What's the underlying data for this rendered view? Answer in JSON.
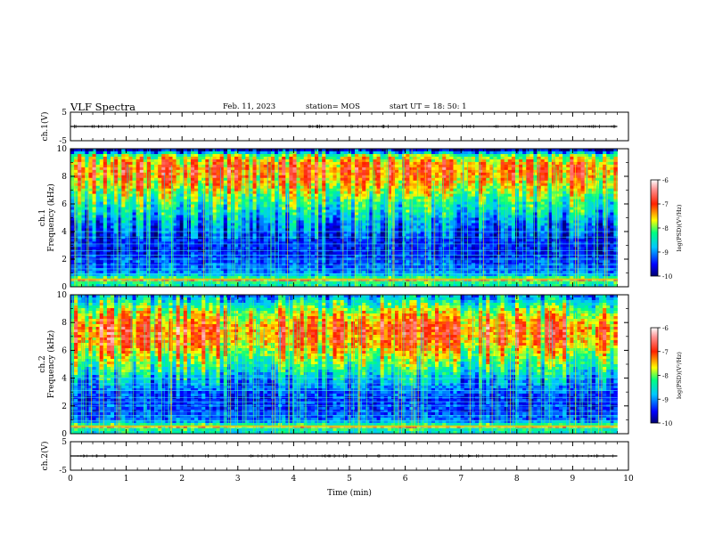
{
  "header": {
    "title": "VLF Spectra",
    "date": "Feb. 11, 2023",
    "station": "station= MOS",
    "start": "start  UT =   18: 50: 1"
  },
  "chart_data": [
    {
      "type": "line",
      "panel": "ch1-waveform",
      "ylabel": "ch.1(V)",
      "ylim": [
        -5,
        5
      ],
      "yticks": [
        "5",
        "-5"
      ],
      "x": [
        0,
        9.8
      ],
      "values": [
        0,
        0
      ]
    },
    {
      "type": "heatmap",
      "panel": "ch1-spectrogram",
      "ylabel": "ch.1\nFrequency  (kHz)",
      "ylim": [
        0,
        10
      ],
      "yticks": [
        "0",
        "2",
        "4",
        "6",
        "8",
        "10"
      ],
      "xlim": [
        0,
        10
      ],
      "data_extent_x": [
        0,
        9.8
      ],
      "colorbar": {
        "label": "log(PSD)(V²/Hz)",
        "range": [
          -10,
          -6
        ],
        "ticks": [
          "-6",
          "-7",
          "-8",
          "-9",
          "-10"
        ]
      },
      "band_intensity_profile": {
        "freq_khz": [
          0.25,
          0.5,
          0.75,
          1.0,
          1.5,
          2.0,
          2.5,
          3.0,
          3.5,
          4.0,
          4.5,
          5.0,
          5.5,
          6.0,
          6.5,
          7.0,
          7.5,
          8.0,
          8.5,
          9.0,
          9.5,
          9.9
        ],
        "log_psd": [
          -8.4,
          -7.3,
          -8.6,
          -9.0,
          -9.2,
          -9.3,
          -9.5,
          -9.4,
          -9.4,
          -9.2,
          -9.0,
          -8.8,
          -8.5,
          -8.3,
          -8.0,
          -7.7,
          -7.4,
          -7.2,
          -7.1,
          -7.3,
          -7.9,
          -9.6
        ]
      }
    },
    {
      "type": "heatmap",
      "panel": "ch2-spectrogram",
      "ylabel": "ch.2\nFrequency  (kHz)",
      "ylim": [
        0,
        10
      ],
      "yticks": [
        "0",
        "2",
        "4",
        "6",
        "8",
        "10"
      ],
      "xlim": [
        0,
        10
      ],
      "data_extent_x": [
        0,
        9.8
      ],
      "colorbar": {
        "label": "log(PSD)(V²/Hz)",
        "range": [
          -10,
          -6
        ],
        "ticks": [
          "-6",
          "-7",
          "-8",
          "-9",
          "-10"
        ]
      },
      "band_intensity_profile": {
        "freq_khz": [
          0.25,
          0.5,
          0.75,
          1.0,
          1.5,
          2.0,
          2.5,
          3.0,
          3.5,
          4.0,
          4.5,
          5.0,
          5.5,
          6.0,
          6.5,
          7.0,
          7.5,
          8.0,
          8.5,
          9.0,
          9.5,
          9.9
        ],
        "log_psd": [
          -8.5,
          -7.4,
          -8.7,
          -9.1,
          -9.3,
          -9.3,
          -9.4,
          -9.2,
          -9.0,
          -8.7,
          -8.4,
          -8.1,
          -7.8,
          -7.5,
          -7.2,
          -7.1,
          -7.0,
          -7.2,
          -7.5,
          -7.9,
          -8.4,
          -8.8
        ]
      }
    },
    {
      "type": "line",
      "panel": "ch2-waveform",
      "ylabel": "ch.2(V)",
      "ylim": [
        -5,
        5
      ],
      "yticks": [
        "5",
        "-5"
      ],
      "x": [
        0,
        9.8
      ],
      "values": [
        0,
        0
      ],
      "xlabel": "Time  (min)",
      "xticks": [
        "0",
        "1",
        "2",
        "3",
        "4",
        "5",
        "6",
        "7",
        "8",
        "9",
        "10"
      ]
    }
  ]
}
